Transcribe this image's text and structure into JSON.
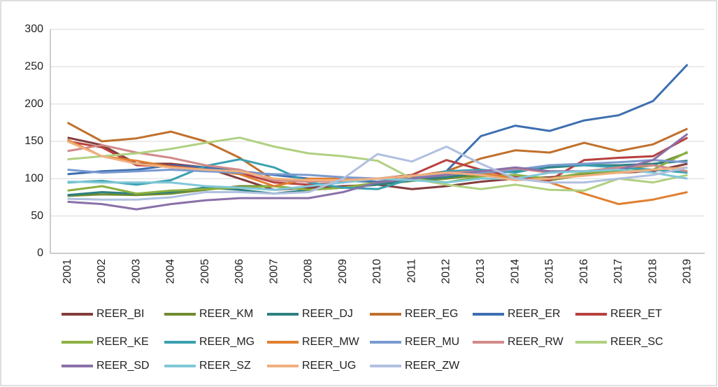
{
  "chart_data": {
    "type": "line",
    "categories": [
      "2001",
      "2002",
      "2003",
      "2004",
      "2005",
      "2006",
      "2007",
      "2008",
      "2009",
      "2010",
      "2011",
      "2012",
      "2013",
      "2014",
      "2015",
      "2016",
      "2017",
      "2018",
      "2019"
    ],
    "ylim": [
      0,
      300
    ],
    "yticks": [
      0,
      50,
      100,
      150,
      200,
      250,
      300
    ],
    "grid": true,
    "legend": "bottom",
    "series": [
      {
        "name": "REER_BI",
        "color": "#843c3c",
        "values": [
          155,
          145,
          120,
          120,
          115,
          100,
          85,
          88,
          90,
          92,
          86,
          90,
          96,
          100,
          102,
          105,
          108,
          110,
          120
        ]
      },
      {
        "name": "REER_KM",
        "color": "#6f8b2f",
        "values": [
          77,
          79,
          78,
          80,
          85,
          90,
          90,
          85,
          88,
          92,
          97,
          100,
          105,
          100,
          98,
          105,
          112,
          118,
          135
        ]
      },
      {
        "name": "REER_DJ",
        "color": "#2e8080",
        "values": [
          78,
          82,
          80,
          82,
          88,
          85,
          80,
          85,
          88,
          92,
          98,
          102,
          108,
          110,
          115,
          118,
          118,
          120,
          124
        ]
      },
      {
        "name": "REER_EG",
        "color": "#c0702d",
        "values": [
          175,
          150,
          154,
          163,
          150,
          128,
          98,
          97,
          98,
          100,
          103,
          110,
          127,
          138,
          135,
          148,
          137,
          146,
          167
        ]
      },
      {
        "name": "REER_ER",
        "color": "#3d6fb0",
        "values": [
          106,
          110,
          112,
          118,
          115,
          110,
          105,
          100,
          97,
          96,
          100,
          110,
          157,
          171,
          164,
          178,
          185,
          204,
          253
        ]
      },
      {
        "name": "REER_ET",
        "color": "#b84040",
        "values": [
          150,
          142,
          118,
          117,
          112,
          108,
          95,
          92,
          95,
          100,
          105,
          125,
          112,
          102,
          98,
          125,
          128,
          130,
          155
        ]
      },
      {
        "name": "REER_KE",
        "color": "#8cb040",
        "values": [
          84,
          90,
          80,
          84,
          86,
          88,
          90,
          85,
          88,
          95,
          100,
          95,
          103,
          105,
          100,
          108,
          110,
          112,
          136
        ]
      },
      {
        "name": "REER_MG",
        "color": "#3aa0b0",
        "values": [
          95,
          97,
          92,
          98,
          117,
          126,
          115,
          95,
          88,
          86,
          100,
          110,
          112,
          108,
          118,
          118,
          115,
          112,
          108
        ]
      },
      {
        "name": "REER_MW",
        "color": "#e08030",
        "values": [
          152,
          130,
          124,
          116,
          112,
          106,
          90,
          100,
          100,
          100,
          104,
          108,
          108,
          100,
          95,
          80,
          66,
          72,
          82
        ]
      },
      {
        "name": "REER_MU",
        "color": "#7a9ad0",
        "values": [
          112,
          108,
          110,
          112,
          110,
          108,
          106,
          105,
          102,
          100,
          104,
          106,
          108,
          112,
          118,
          120,
          122,
          125,
          122
        ]
      },
      {
        "name": "REER_RW",
        "color": "#d08a88",
        "values": [
          137,
          145,
          135,
          128,
          118,
          112,
          98,
          96,
          98,
          100,
          104,
          108,
          110,
          114,
          108,
          110,
          115,
          118,
          110
        ]
      },
      {
        "name": "REER_SC",
        "color": "#b0d080",
        "values": [
          126,
          130,
          134,
          140,
          148,
          155,
          143,
          134,
          130,
          124,
          100,
          92,
          86,
          92,
          85,
          84,
          100,
          95,
          105
        ]
      },
      {
        "name": "REER_SD",
        "color": "#8a70a8",
        "values": [
          69,
          66,
          59,
          66,
          71,
          74,
          74,
          74,
          82,
          95,
          100,
          105,
          110,
          115,
          110,
          110,
          112,
          125,
          160
        ]
      },
      {
        "name": "REER_SZ",
        "color": "#80c8d8",
        "values": [
          96,
          95,
          95,
          95,
          90,
          88,
          85,
          90,
          95,
          100,
          98,
          95,
          100,
          100,
          108,
          110,
          112,
          108,
          100
        ]
      },
      {
        "name": "REER_UG",
        "color": "#f0b080",
        "values": [
          150,
          130,
          120,
          115,
          112,
          110,
          100,
          98,
          98,
          100,
          104,
          108,
          105,
          98,
          100,
          104,
          108,
          112,
          115
        ]
      },
      {
        "name": "REER_ZW",
        "color": "#b0c0e0",
        "values": [
          73,
          72,
          72,
          75,
          82,
          82,
          80,
          82,
          100,
          133,
          123,
          143,
          120,
          100,
          95,
          95,
          100,
          105,
          115
        ]
      }
    ]
  }
}
